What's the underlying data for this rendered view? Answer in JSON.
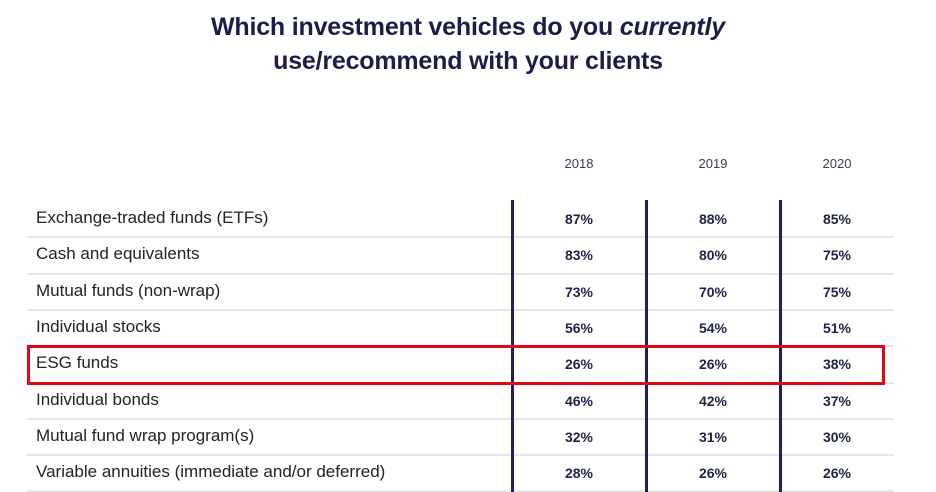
{
  "title": {
    "line1_prefix": "Which investment vehicles do you ",
    "line1_emphasis": "currently",
    "line2": "use/recommend with your clients"
  },
  "chart_data": {
    "type": "table",
    "title": "Which investment vehicles do you currently use/recommend with your clients",
    "columns": [
      "2018",
      "2019",
      "2020"
    ],
    "rows": [
      {
        "label": "Exchange-traded funds (ETFs)",
        "values": [
          "87%",
          "88%",
          "85%"
        ]
      },
      {
        "label": "Cash and equivalents",
        "values": [
          "83%",
          "80%",
          "75%"
        ]
      },
      {
        "label": "Mutual funds (non-wrap)",
        "values": [
          "73%",
          "70%",
          "75%"
        ]
      },
      {
        "label": "Individual stocks",
        "values": [
          "56%",
          "54%",
          "51%"
        ]
      },
      {
        "label": "ESG funds",
        "values": [
          "26%",
          "26%",
          "38%"
        ],
        "highlighted": true
      },
      {
        "label": "Individual bonds",
        "values": [
          "46%",
          "42%",
          "37%"
        ]
      },
      {
        "label": "Mutual fund wrap program(s)",
        "values": [
          "32%",
          "31%",
          "30%"
        ]
      },
      {
        "label": "Variable annuities (immediate and/or deferred)",
        "values": [
          "28%",
          "26%",
          "26%"
        ]
      }
    ]
  },
  "colors": {
    "title": "#1b1e48",
    "divider": "#1e2252",
    "highlight": "#e30613",
    "row_line": "#e6e6e6"
  }
}
